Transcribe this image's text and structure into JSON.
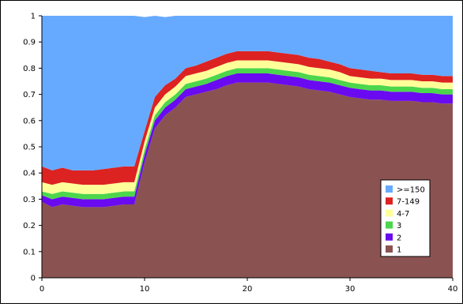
{
  "chart_data": {
    "type": "area",
    "stacked": true,
    "x": [
      0,
      1,
      2,
      3,
      4,
      5,
      6,
      7,
      8,
      9,
      10,
      11,
      12,
      13,
      14,
      15,
      16,
      17,
      18,
      19,
      20,
      21,
      22,
      23,
      24,
      25,
      26,
      27,
      28,
      29,
      30,
      31,
      32,
      33,
      34,
      35,
      36,
      37,
      38,
      39,
      40
    ],
    "xlim": [
      0,
      40
    ],
    "ylim": [
      0,
      1
    ],
    "xticks": [
      "0",
      "10",
      "20",
      "30",
      "40"
    ],
    "yticks": [
      "0",
      "0.1",
      "0.2",
      "0.3",
      "0.4",
      "0.5",
      "0.6",
      "0.7",
      "0.8",
      "0.9",
      "1"
    ],
    "grid": false,
    "legend_position": "bottom-right",
    "series": [
      {
        "name": "1",
        "color": "#8B5252",
        "values": [
          0.29,
          0.27,
          0.28,
          0.275,
          0.27,
          0.27,
          0.27,
          0.275,
          0.28,
          0.28,
          0.44,
          0.57,
          0.62,
          0.65,
          0.69,
          0.7,
          0.71,
          0.72,
          0.735,
          0.745,
          0.745,
          0.745,
          0.745,
          0.74,
          0.735,
          0.73,
          0.72,
          0.715,
          0.71,
          0.7,
          0.69,
          0.685,
          0.68,
          0.68,
          0.675,
          0.675,
          0.675,
          0.67,
          0.67,
          0.665,
          0.665
        ]
      },
      {
        "name": "2",
        "color": "#6A0AF0",
        "values": [
          0.025,
          0.03,
          0.03,
          0.03,
          0.03,
          0.03,
          0.03,
          0.03,
          0.03,
          0.03,
          0.03,
          0.03,
          0.03,
          0.03,
          0.03,
          0.03,
          0.03,
          0.035,
          0.035,
          0.035,
          0.035,
          0.035,
          0.035,
          0.035,
          0.035,
          0.035,
          0.035,
          0.035,
          0.035,
          0.035,
          0.035,
          0.035,
          0.035,
          0.035,
          0.035,
          0.035,
          0.035,
          0.035,
          0.035,
          0.035,
          0.035
        ]
      },
      {
        "name": "3",
        "color": "#4CD64C",
        "values": [
          0.015,
          0.02,
          0.02,
          0.02,
          0.02,
          0.02,
          0.02,
          0.02,
          0.02,
          0.02,
          0.02,
          0.02,
          0.02,
          0.02,
          0.02,
          0.02,
          0.02,
          0.02,
          0.02,
          0.02,
          0.02,
          0.02,
          0.02,
          0.02,
          0.02,
          0.02,
          0.02,
          0.02,
          0.02,
          0.02,
          0.02,
          0.02,
          0.02,
          0.02,
          0.02,
          0.02,
          0.02,
          0.02,
          0.02,
          0.02,
          0.02
        ]
      },
      {
        "name": "4-7",
        "color": "#FFFF99",
        "values": [
          0.035,
          0.035,
          0.035,
          0.035,
          0.035,
          0.035,
          0.035,
          0.035,
          0.035,
          0.035,
          0.03,
          0.03,
          0.03,
          0.03,
          0.03,
          0.03,
          0.03,
          0.03,
          0.03,
          0.03,
          0.03,
          0.03,
          0.03,
          0.03,
          0.03,
          0.03,
          0.03,
          0.03,
          0.03,
          0.03,
          0.025,
          0.025,
          0.025,
          0.025,
          0.025,
          0.025,
          0.025,
          0.025,
          0.025,
          0.025,
          0.025
        ]
      },
      {
        "name": "7-149",
        "color": "#DD2222",
        "values": [
          0.06,
          0.055,
          0.055,
          0.05,
          0.055,
          0.055,
          0.06,
          0.06,
          0.06,
          0.06,
          0.04,
          0.04,
          0.035,
          0.03,
          0.03,
          0.03,
          0.035,
          0.035,
          0.035,
          0.035,
          0.035,
          0.035,
          0.035,
          0.035,
          0.035,
          0.035,
          0.035,
          0.035,
          0.03,
          0.03,
          0.03,
          0.03,
          0.03,
          0.025,
          0.025,
          0.025,
          0.025,
          0.025,
          0.025,
          0.025,
          0.025
        ]
      },
      {
        "name": ">=150",
        "color": "#66AAFF",
        "values": [
          0.575,
          0.59,
          0.58,
          0.59,
          0.59,
          0.59,
          0.585,
          0.58,
          0.575,
          0.575,
          0.435,
          0.31,
          0.26,
          0.24,
          0.2,
          0.19,
          0.175,
          0.16,
          0.145,
          0.135,
          0.135,
          0.135,
          0.135,
          0.14,
          0.145,
          0.15,
          0.16,
          0.165,
          0.175,
          0.185,
          0.2,
          0.205,
          0.21,
          0.215,
          0.22,
          0.22,
          0.22,
          0.225,
          0.225,
          0.23,
          0.23
        ]
      }
    ],
    "legend_order": [
      ">=150",
      "7-149",
      "4-7",
      "3",
      "2",
      "1"
    ]
  }
}
